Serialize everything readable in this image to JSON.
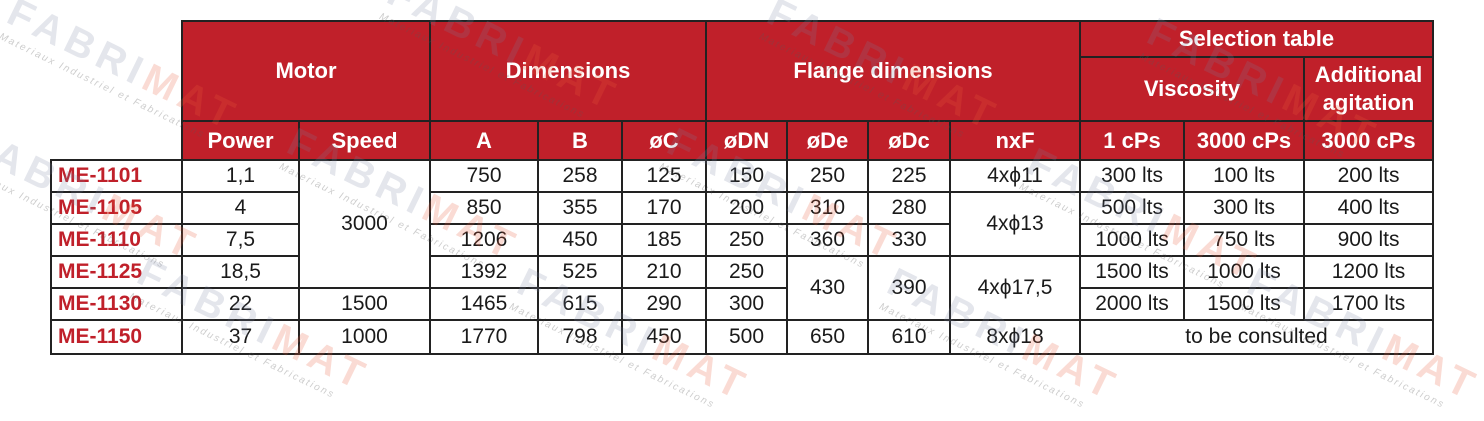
{
  "headers": {
    "motor": "Motor",
    "dimensions": "Dimensions",
    "flange_dimensions": "Flange dimensions",
    "selection_table": "Selection table",
    "viscosity": "Viscosity",
    "additional_agitation": "Additional agitation",
    "power": "Power",
    "speed": "Speed",
    "a": "A",
    "b": "B",
    "oc": "øC",
    "odn": "øDN",
    "ode": "øDe",
    "odc": "øDc",
    "nxf": "nxF",
    "visc_1": "1 cPs",
    "visc_3000": "3000 cPs",
    "add_3000": "3000 cPs"
  },
  "rows": [
    {
      "model": "ME-1101",
      "power": "1,1",
      "a": "750",
      "b": "258",
      "c": "125",
      "dn": "150",
      "de": "250",
      "dc": "225",
      "nxf": "4xϕ11",
      "v1": "300 lts",
      "v3000": "100 lts",
      "add": "200 lts"
    },
    {
      "model": "ME-1105",
      "power": "4",
      "a": "850",
      "b": "355",
      "c": "170",
      "dn": "200",
      "de": "310",
      "dc": "280",
      "v1": "500 lts",
      "v3000": "300 lts",
      "add": "400 lts"
    },
    {
      "model": "ME-1110",
      "power": "7,5",
      "a": "1206",
      "b": "450",
      "c": "185",
      "dn": "250",
      "de": "360",
      "dc": "330",
      "v1": "1000 lts",
      "v3000": "750 lts",
      "add": "900 lts"
    },
    {
      "model": "ME-1125",
      "power": "18,5",
      "a": "1392",
      "b": "525",
      "c": "210",
      "dn": "250",
      "v1": "1500 lts",
      "v3000": "1000 lts",
      "add": "1200 lts"
    },
    {
      "model": "ME-1130",
      "power": "22",
      "a": "1465",
      "b": "615",
      "c": "290",
      "dn": "300",
      "v1": "2000 lts",
      "v3000": "1500 lts",
      "add": "1700 lts"
    },
    {
      "model": "ME-1150",
      "power": "37",
      "speed": "1000",
      "a": "1770",
      "b": "798",
      "c": "450",
      "dn": "500",
      "de": "650",
      "dc": "610",
      "nxf": "8xϕ18"
    }
  ],
  "merged": {
    "speed_3000": "3000",
    "speed_1500": "1500",
    "nxf_4x13": "4xϕ13",
    "de_430": "430",
    "dc_390": "390",
    "nxf_4x175": "4xϕ17,5",
    "to_be_consulted": "to be consulted"
  },
  "watermark": {
    "logo_part1": "FABRI",
    "logo_part2": "MAT",
    "tagline": "Materiaux Industriel et Fabrications"
  },
  "colors": {
    "header_red": "#c0202a",
    "model_text": "#c0202a",
    "border": "#222222"
  }
}
